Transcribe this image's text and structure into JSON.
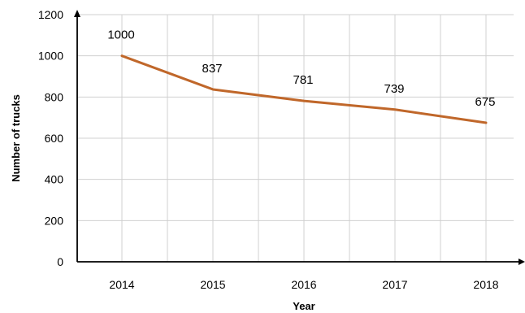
{
  "chart_data": {
    "type": "line",
    "x": [
      "2014",
      "2015",
      "2016",
      "2017",
      "2018"
    ],
    "series": [
      {
        "values": [
          1000,
          837,
          781,
          739,
          675
        ],
        "color": "#c0672a"
      }
    ],
    "data_labels": [
      "1000",
      "837",
      "781",
      "739",
      "675"
    ],
    "xlabel": "Year",
    "ylabel": "Number of trucks",
    "ylim": [
      0,
      1200
    ],
    "yticks": [
      0,
      200,
      400,
      600,
      800,
      1000,
      1200
    ],
    "ytick_labels": [
      "0",
      "200",
      "400",
      "600",
      "800",
      "1000",
      "1200"
    ],
    "grid": true,
    "legend": "none"
  }
}
